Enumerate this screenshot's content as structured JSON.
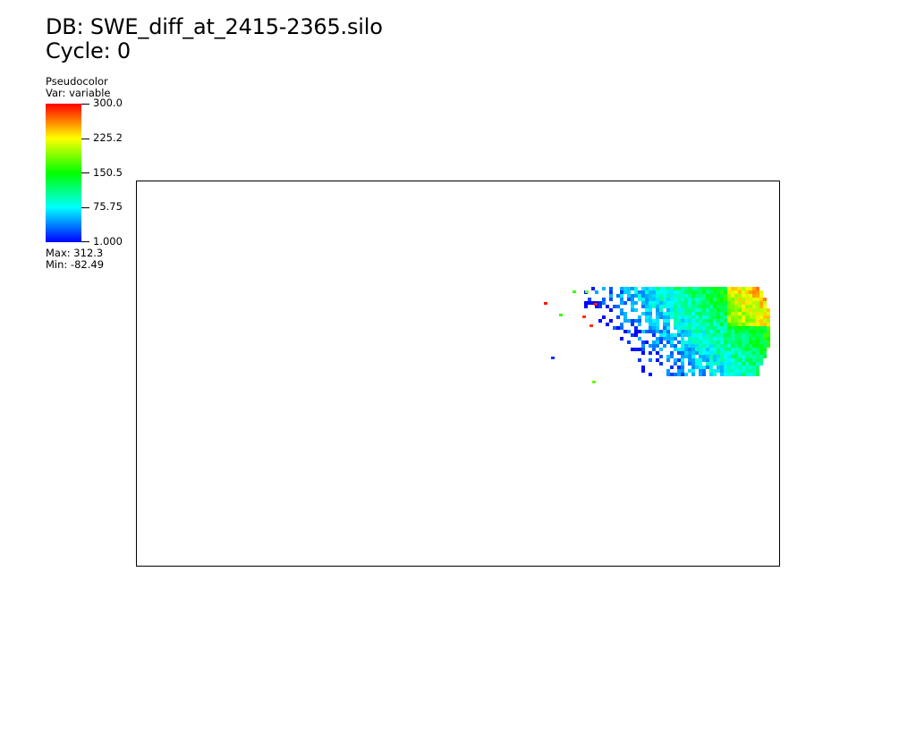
{
  "header": {
    "db_label": "DB: SWE_diff_at_2415-2365.silo",
    "cycle_label": "Cycle: 0"
  },
  "legend": {
    "plot_type": "Pseudocolor",
    "var_label": "Var: variable",
    "ticks": [
      "300.0",
      "225.2",
      "150.5",
      "75.75",
      "1.000"
    ],
    "max_label": "Max:  312.3",
    "min_label": "Min: -82.49",
    "colors": [
      "#0000ff",
      "#00ffff",
      "#00ff00",
      "#ffff00",
      "#ff0000"
    ]
  }
}
